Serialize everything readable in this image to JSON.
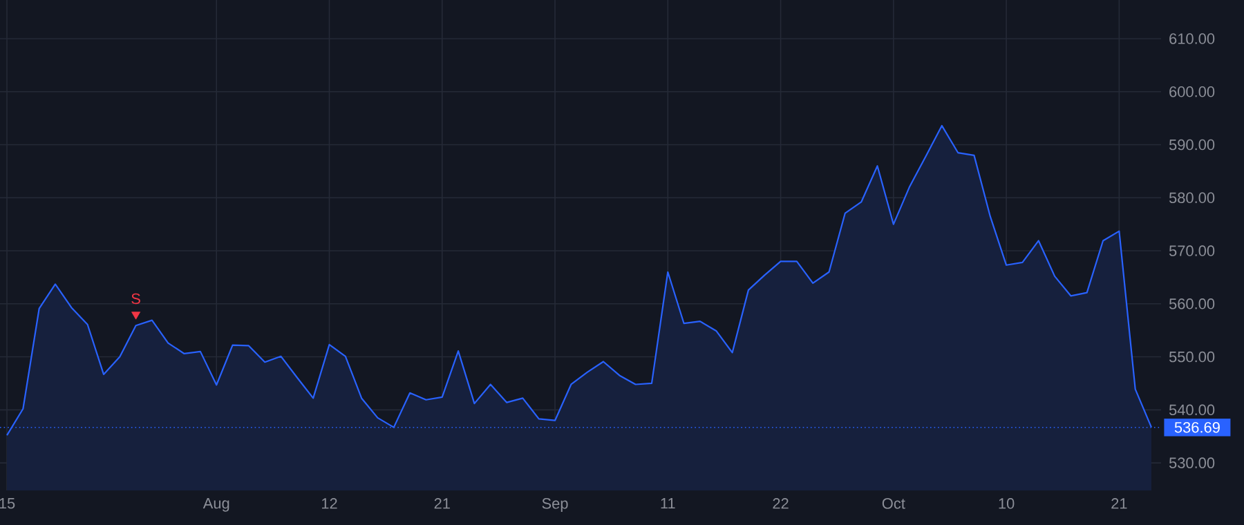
{
  "chart_data": {
    "type": "area",
    "categories": [
      "15",
      null,
      null,
      null,
      null,
      null,
      null,
      null,
      null,
      null,
      null,
      null,
      null,
      "Aug",
      null,
      null,
      null,
      null,
      null,
      null,
      "12",
      null,
      null,
      null,
      null,
      null,
      null,
      "21",
      null,
      null,
      null,
      null,
      null,
      null,
      "Sep",
      null,
      null,
      null,
      null,
      null,
      null,
      "11",
      null,
      null,
      null,
      null,
      null,
      null,
      "22",
      null,
      null,
      null,
      null,
      null,
      null,
      "Oct",
      null,
      null,
      null,
      null,
      null,
      null,
      "10",
      null,
      null,
      null,
      null,
      null,
      null,
      "21",
      null,
      null
    ],
    "series": [
      {
        "color": "#2962ff",
        "values": [
          535.2,
          540.2,
          559.1,
          563.7,
          559.3,
          556.1,
          546.7,
          550.0,
          555.9,
          556.9,
          552.6,
          550.6,
          551.0,
          544.7,
          552.2,
          552.1,
          549.0,
          550.1,
          546.1,
          542.2,
          552.3,
          550.1,
          542.2,
          538.5,
          536.7,
          543.2,
          541.9,
          542.4,
          551.1,
          541.2,
          544.8,
          541.4,
          542.2,
          538.3,
          538.0,
          544.8,
          547.1,
          549.1,
          546.5,
          544.8,
          545.0,
          566.0,
          556.3,
          556.7,
          554.9,
          550.8,
          562.6,
          565.4,
          568.0,
          568.0,
          563.9,
          566.0,
          577.1,
          579.2,
          586.0,
          575.0,
          582.1,
          587.8,
          593.6,
          588.5,
          588.0,
          576.5,
          567.3,
          567.8,
          571.9,
          565.2,
          561.5,
          562.1,
          571.9,
          573.7,
          543.9,
          536.7
        ]
      },
      {
        "type": "scatter",
        "color": "#f23645",
        "marker": "triangle",
        "values": [
          null,
          null,
          null,
          null,
          null,
          null,
          null,
          null,
          558,
          null,
          null,
          null,
          null,
          null,
          null,
          null,
          null,
          null,
          null,
          null,
          null,
          null,
          null,
          null,
          null,
          null,
          null,
          null,
          null,
          null,
          null,
          null,
          null,
          null,
          null,
          null,
          null,
          null,
          null,
          null,
          null,
          null,
          null,
          null,
          null,
          null,
          null,
          null,
          null,
          null,
          null,
          null,
          null,
          null,
          null,
          null,
          null,
          null,
          null,
          null,
          null,
          null,
          null,
          null,
          null,
          null,
          null,
          null,
          null,
          null,
          null,
          null
        ],
        "value_labels": [
          null,
          null,
          null,
          null,
          null,
          null,
          null,
          null,
          "S",
          null,
          null,
          null,
          null,
          null,
          null,
          null,
          null,
          null,
          null,
          null,
          null,
          null,
          null,
          null,
          null,
          null,
          null,
          null,
          null,
          null,
          null,
          null,
          null,
          null,
          null,
          null,
          null,
          null,
          null,
          null,
          null,
          null,
          null,
          null,
          null,
          null,
          null,
          null,
          null,
          null,
          null,
          null,
          null,
          null,
          null,
          null,
          null,
          null,
          null,
          null,
          null,
          null,
          null,
          null,
          null,
          null,
          null,
          null,
          null,
          null,
          null,
          null
        ]
      }
    ],
    "ylim": [
      524.8,
      617.3
    ],
    "yticks": [
      {
        "value": 530,
        "label": "530.00"
      },
      {
        "value": 540,
        "label": "540.00"
      },
      {
        "value": 550,
        "label": "550.00"
      },
      {
        "value": 560,
        "label": "560.00"
      },
      {
        "value": 570,
        "label": "570.00"
      },
      {
        "value": 580,
        "label": "580.00"
      },
      {
        "value": 590,
        "label": "590.00"
      },
      {
        "value": 600,
        "label": "600.00"
      },
      {
        "value": 610,
        "label": "610.00"
      }
    ],
    "grid": true,
    "ref_lines": [
      {
        "axis": "y",
        "value": 536.69,
        "label": "536.69",
        "color": "#2962ff",
        "line_style": "dotted"
      }
    ]
  }
}
